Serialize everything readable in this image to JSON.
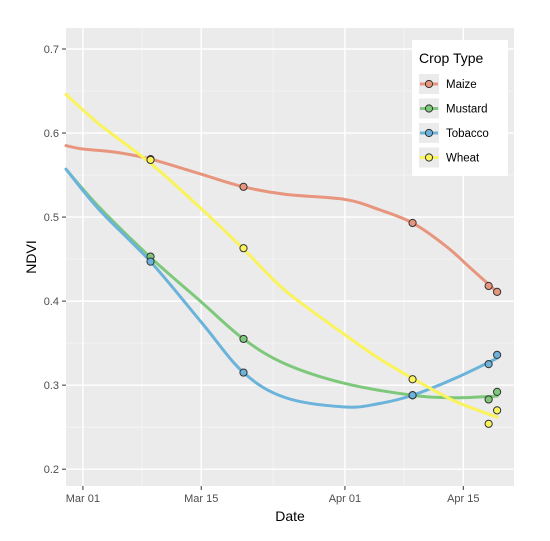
{
  "chart_data": {
    "type": "scatter",
    "title": "",
    "xlabel": "Date",
    "ylabel": "NDVI",
    "x_ticks": [
      "Mar 01",
      "Mar 15",
      "Apr 01",
      "Apr 15"
    ],
    "x_tick_dates": [
      "2019-03-01",
      "2019-03-15",
      "2019-04-01",
      "2019-04-15"
    ],
    "xlim": [
      "2019-02-27",
      "2019-04-21"
    ],
    "y_ticks": [
      "0.2",
      "0.3",
      "0.4",
      "0.5",
      "0.6",
      "0.7"
    ],
    "ylim": [
      0.18,
      0.725
    ],
    "grid": true,
    "smooth_lines": true,
    "legend": {
      "title": "Crop Type",
      "position": "top-right"
    },
    "series": [
      {
        "name": "Maize",
        "color": "#E8957D",
        "points": [
          {
            "x": "2019-03-09",
            "y": 0.569
          },
          {
            "x": "2019-03-20",
            "y": 0.536
          },
          {
            "x": "2019-04-09",
            "y": 0.493
          },
          {
            "x": "2019-04-18",
            "y": 0.418
          },
          {
            "x": "2019-04-19",
            "y": 0.411
          }
        ],
        "curve": [
          {
            "x": "2019-02-27",
            "y": 0.585
          },
          {
            "x": "2019-03-01",
            "y": 0.581
          },
          {
            "x": "2019-03-05",
            "y": 0.577
          },
          {
            "x": "2019-03-09",
            "y": 0.569
          },
          {
            "x": "2019-03-15",
            "y": 0.551
          },
          {
            "x": "2019-03-20",
            "y": 0.536
          },
          {
            "x": "2019-03-25",
            "y": 0.527
          },
          {
            "x": "2019-04-01",
            "y": 0.521
          },
          {
            "x": "2019-04-05",
            "y": 0.509
          },
          {
            "x": "2019-04-09",
            "y": 0.493
          },
          {
            "x": "2019-04-13",
            "y": 0.465
          },
          {
            "x": "2019-04-16",
            "y": 0.438
          },
          {
            "x": "2019-04-19",
            "y": 0.411
          }
        ]
      },
      {
        "name": "Mustard",
        "color": "#7DC87A",
        "points": [
          {
            "x": "2019-03-09",
            "y": 0.453
          },
          {
            "x": "2019-03-20",
            "y": 0.355
          },
          {
            "x": "2019-04-09",
            "y": 0.288
          },
          {
            "x": "2019-04-18",
            "y": 0.283
          },
          {
            "x": "2019-04-19",
            "y": 0.292
          }
        ],
        "curve": [
          {
            "x": "2019-02-27",
            "y": 0.557
          },
          {
            "x": "2019-03-03",
            "y": 0.511
          },
          {
            "x": "2019-03-09",
            "y": 0.452
          },
          {
            "x": "2019-03-15",
            "y": 0.399
          },
          {
            "x": "2019-03-20",
            "y": 0.355
          },
          {
            "x": "2019-03-25",
            "y": 0.325
          },
          {
            "x": "2019-04-01",
            "y": 0.302
          },
          {
            "x": "2019-04-09",
            "y": 0.288
          },
          {
            "x": "2019-04-14",
            "y": 0.285
          },
          {
            "x": "2019-04-19",
            "y": 0.287
          }
        ]
      },
      {
        "name": "Tobacco",
        "color": "#6BB3DA",
        "points": [
          {
            "x": "2019-03-09",
            "y": 0.447
          },
          {
            "x": "2019-03-20",
            "y": 0.315
          },
          {
            "x": "2019-04-09",
            "y": 0.288
          },
          {
            "x": "2019-04-18",
            "y": 0.325
          },
          {
            "x": "2019-04-19",
            "y": 0.336
          }
        ],
        "curve": [
          {
            "x": "2019-02-27",
            "y": 0.557
          },
          {
            "x": "2019-03-03",
            "y": 0.508
          },
          {
            "x": "2019-03-09",
            "y": 0.447
          },
          {
            "x": "2019-03-15",
            "y": 0.375
          },
          {
            "x": "2019-03-20",
            "y": 0.315
          },
          {
            "x": "2019-03-25",
            "y": 0.285
          },
          {
            "x": "2019-04-01",
            "y": 0.274
          },
          {
            "x": "2019-04-05",
            "y": 0.278
          },
          {
            "x": "2019-04-09",
            "y": 0.288
          },
          {
            "x": "2019-04-14",
            "y": 0.308
          },
          {
            "x": "2019-04-19",
            "y": 0.332
          }
        ]
      },
      {
        "name": "Wheat",
        "color": "#FAF35A",
        "points": [
          {
            "x": "2019-03-09",
            "y": 0.568
          },
          {
            "x": "2019-03-20",
            "y": 0.463
          },
          {
            "x": "2019-04-09",
            "y": 0.307
          },
          {
            "x": "2019-04-18",
            "y": 0.254
          },
          {
            "x": "2019-04-19",
            "y": 0.27
          }
        ],
        "curve": [
          {
            "x": "2019-02-27",
            "y": 0.646
          },
          {
            "x": "2019-03-03",
            "y": 0.61
          },
          {
            "x": "2019-03-09",
            "y": 0.564
          },
          {
            "x": "2019-03-15",
            "y": 0.51
          },
          {
            "x": "2019-03-20",
            "y": 0.462
          },
          {
            "x": "2019-03-25",
            "y": 0.412
          },
          {
            "x": "2019-04-01",
            "y": 0.36
          },
          {
            "x": "2019-04-05",
            "y": 0.332
          },
          {
            "x": "2019-04-09",
            "y": 0.308
          },
          {
            "x": "2019-04-14",
            "y": 0.281
          },
          {
            "x": "2019-04-19",
            "y": 0.262
          }
        ]
      }
    ]
  }
}
